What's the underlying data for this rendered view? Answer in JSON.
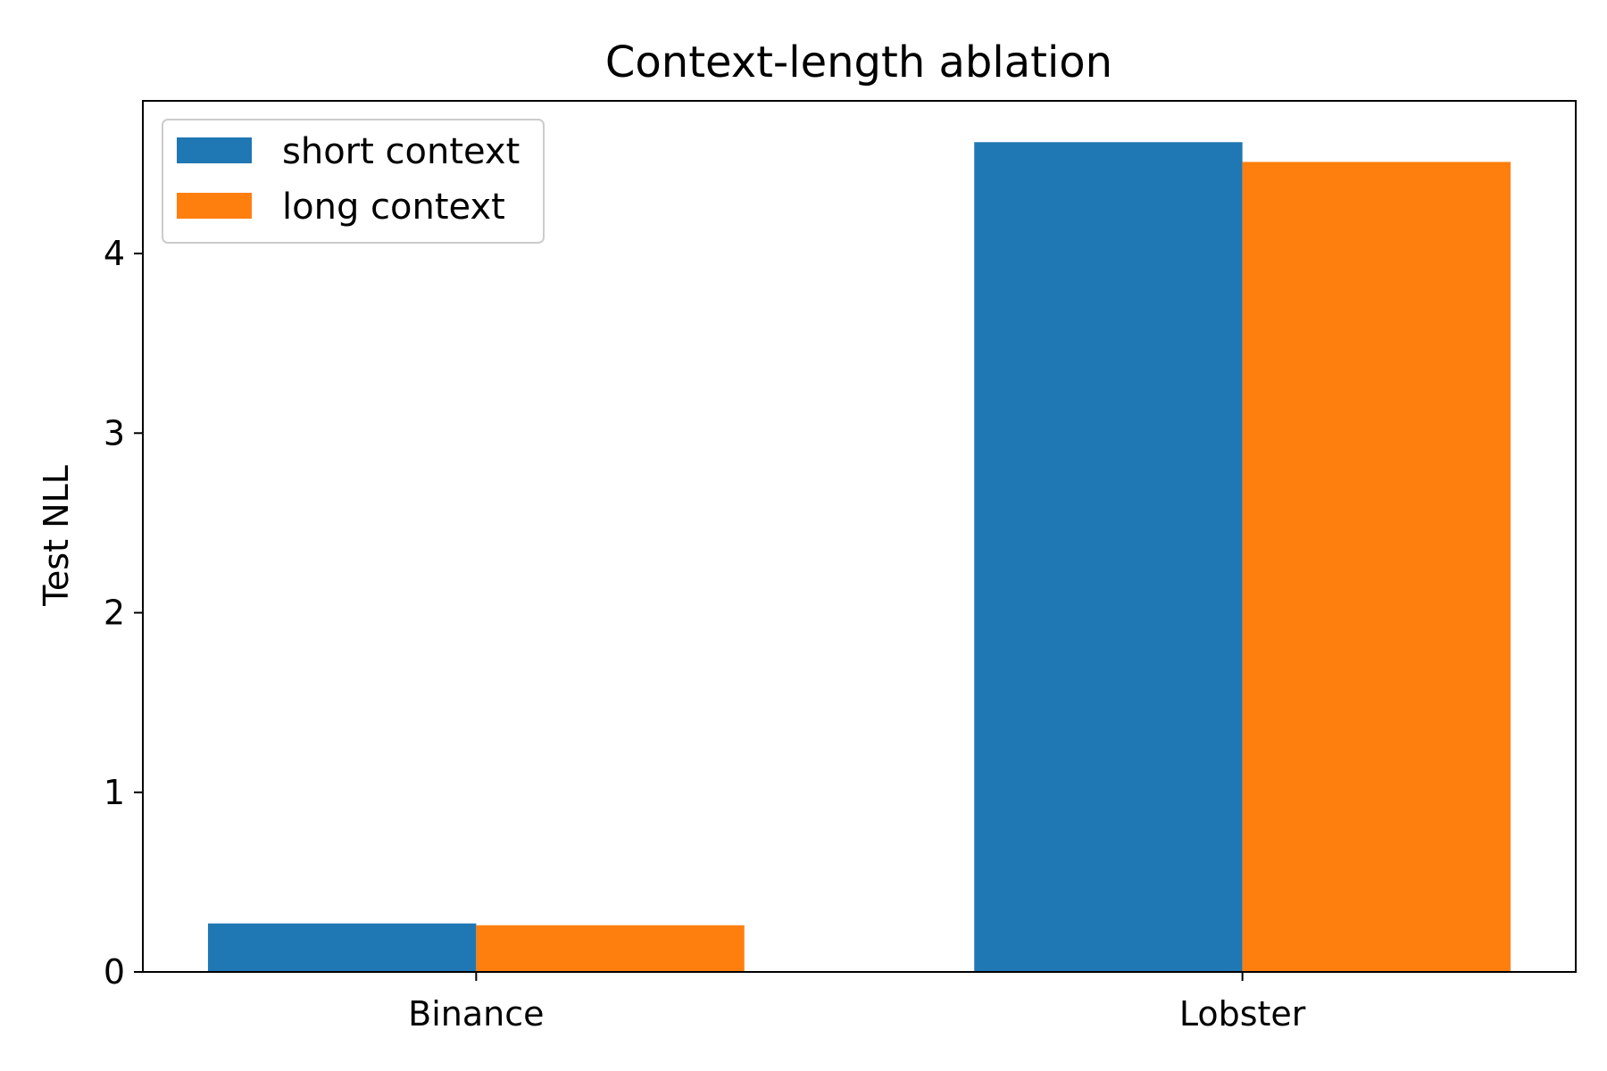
{
  "chart_data": {
    "type": "bar",
    "title": "Context-length ablation",
    "xlabel": "",
    "ylabel": "Test NLL",
    "categories": [
      "Binance",
      "Lobster"
    ],
    "series": [
      {
        "name": "short context",
        "values": [
          0.27,
          4.62
        ]
      },
      {
        "name": "long context",
        "values": [
          0.26,
          4.51
        ]
      }
    ],
    "ylim": [
      0,
      4.85
    ],
    "yticks": [
      0,
      1,
      2,
      3,
      4
    ],
    "ytick_labels": [
      "0",
      "1",
      "2",
      "3",
      "4"
    ],
    "grid": false,
    "legend_position": "top-left",
    "colors": {
      "short context": "#1f77b4",
      "long context": "#ff7f0e"
    }
  }
}
